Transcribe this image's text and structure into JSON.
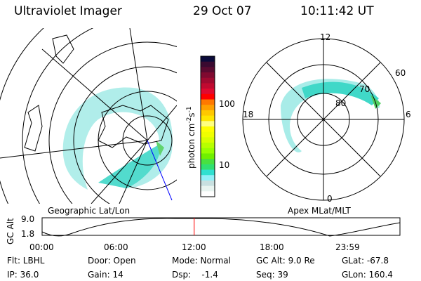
{
  "header": {
    "instrument": "Ultraviolet Imager",
    "date": "29 Oct 07",
    "time": "10:11:42 UT"
  },
  "colorbar": {
    "label": "photon cm",
    "label_sup1": "-2",
    "label_mid": "s",
    "label_sup2": "-1",
    "ticks": [
      "100",
      "10"
    ],
    "colors": [
      "#0a0a3a",
      "#3a0a30",
      "#5a0a30",
      "#800a30",
      "#a00a30",
      "#c00a30",
      "#e00a30",
      "#ff0000",
      "#ff7800",
      "#ffa000",
      "#ffc800",
      "#ffe600",
      "#ffff80",
      "#ffff00",
      "#f0ff00",
      "#d8ff00",
      "#b8ff00",
      "#98ff00",
      "#70f000",
      "#48e040",
      "#30e070",
      "#30e0d0",
      "#90f0f8",
      "#c8e0e0",
      "#e8f4f0",
      "#ffffff"
    ]
  },
  "left_map": {
    "label": "Geographic Lat/Lon"
  },
  "right_map": {
    "label": "Apex MLat/MLT",
    "mlt_labels": [
      "12",
      "6",
      "0",
      "18"
    ],
    "lat_labels": [
      "60",
      "70",
      "80"
    ]
  },
  "timeline": {
    "ylabel": "GC Alt",
    "yticks": [
      "9.0",
      "1.8"
    ],
    "xticks": [
      "00:00",
      "06:00",
      "12:00",
      "18:00",
      "23:59"
    ],
    "current_fraction": 0.425,
    "marker_color": "#ff0000"
  },
  "status": {
    "flt": "Flt: LBHL",
    "ip": "IP: 36.0",
    "door": "Door: Open",
    "gain": "Gain: 14",
    "mode": "Mode: Normal",
    "dsp": "Dsp:    -1.4",
    "gcalt": "GC Alt: 9.0 Re",
    "seq": "Seq: 39",
    "glat": "GLat: -67.8",
    "glon": "GLon: 160.4"
  }
}
